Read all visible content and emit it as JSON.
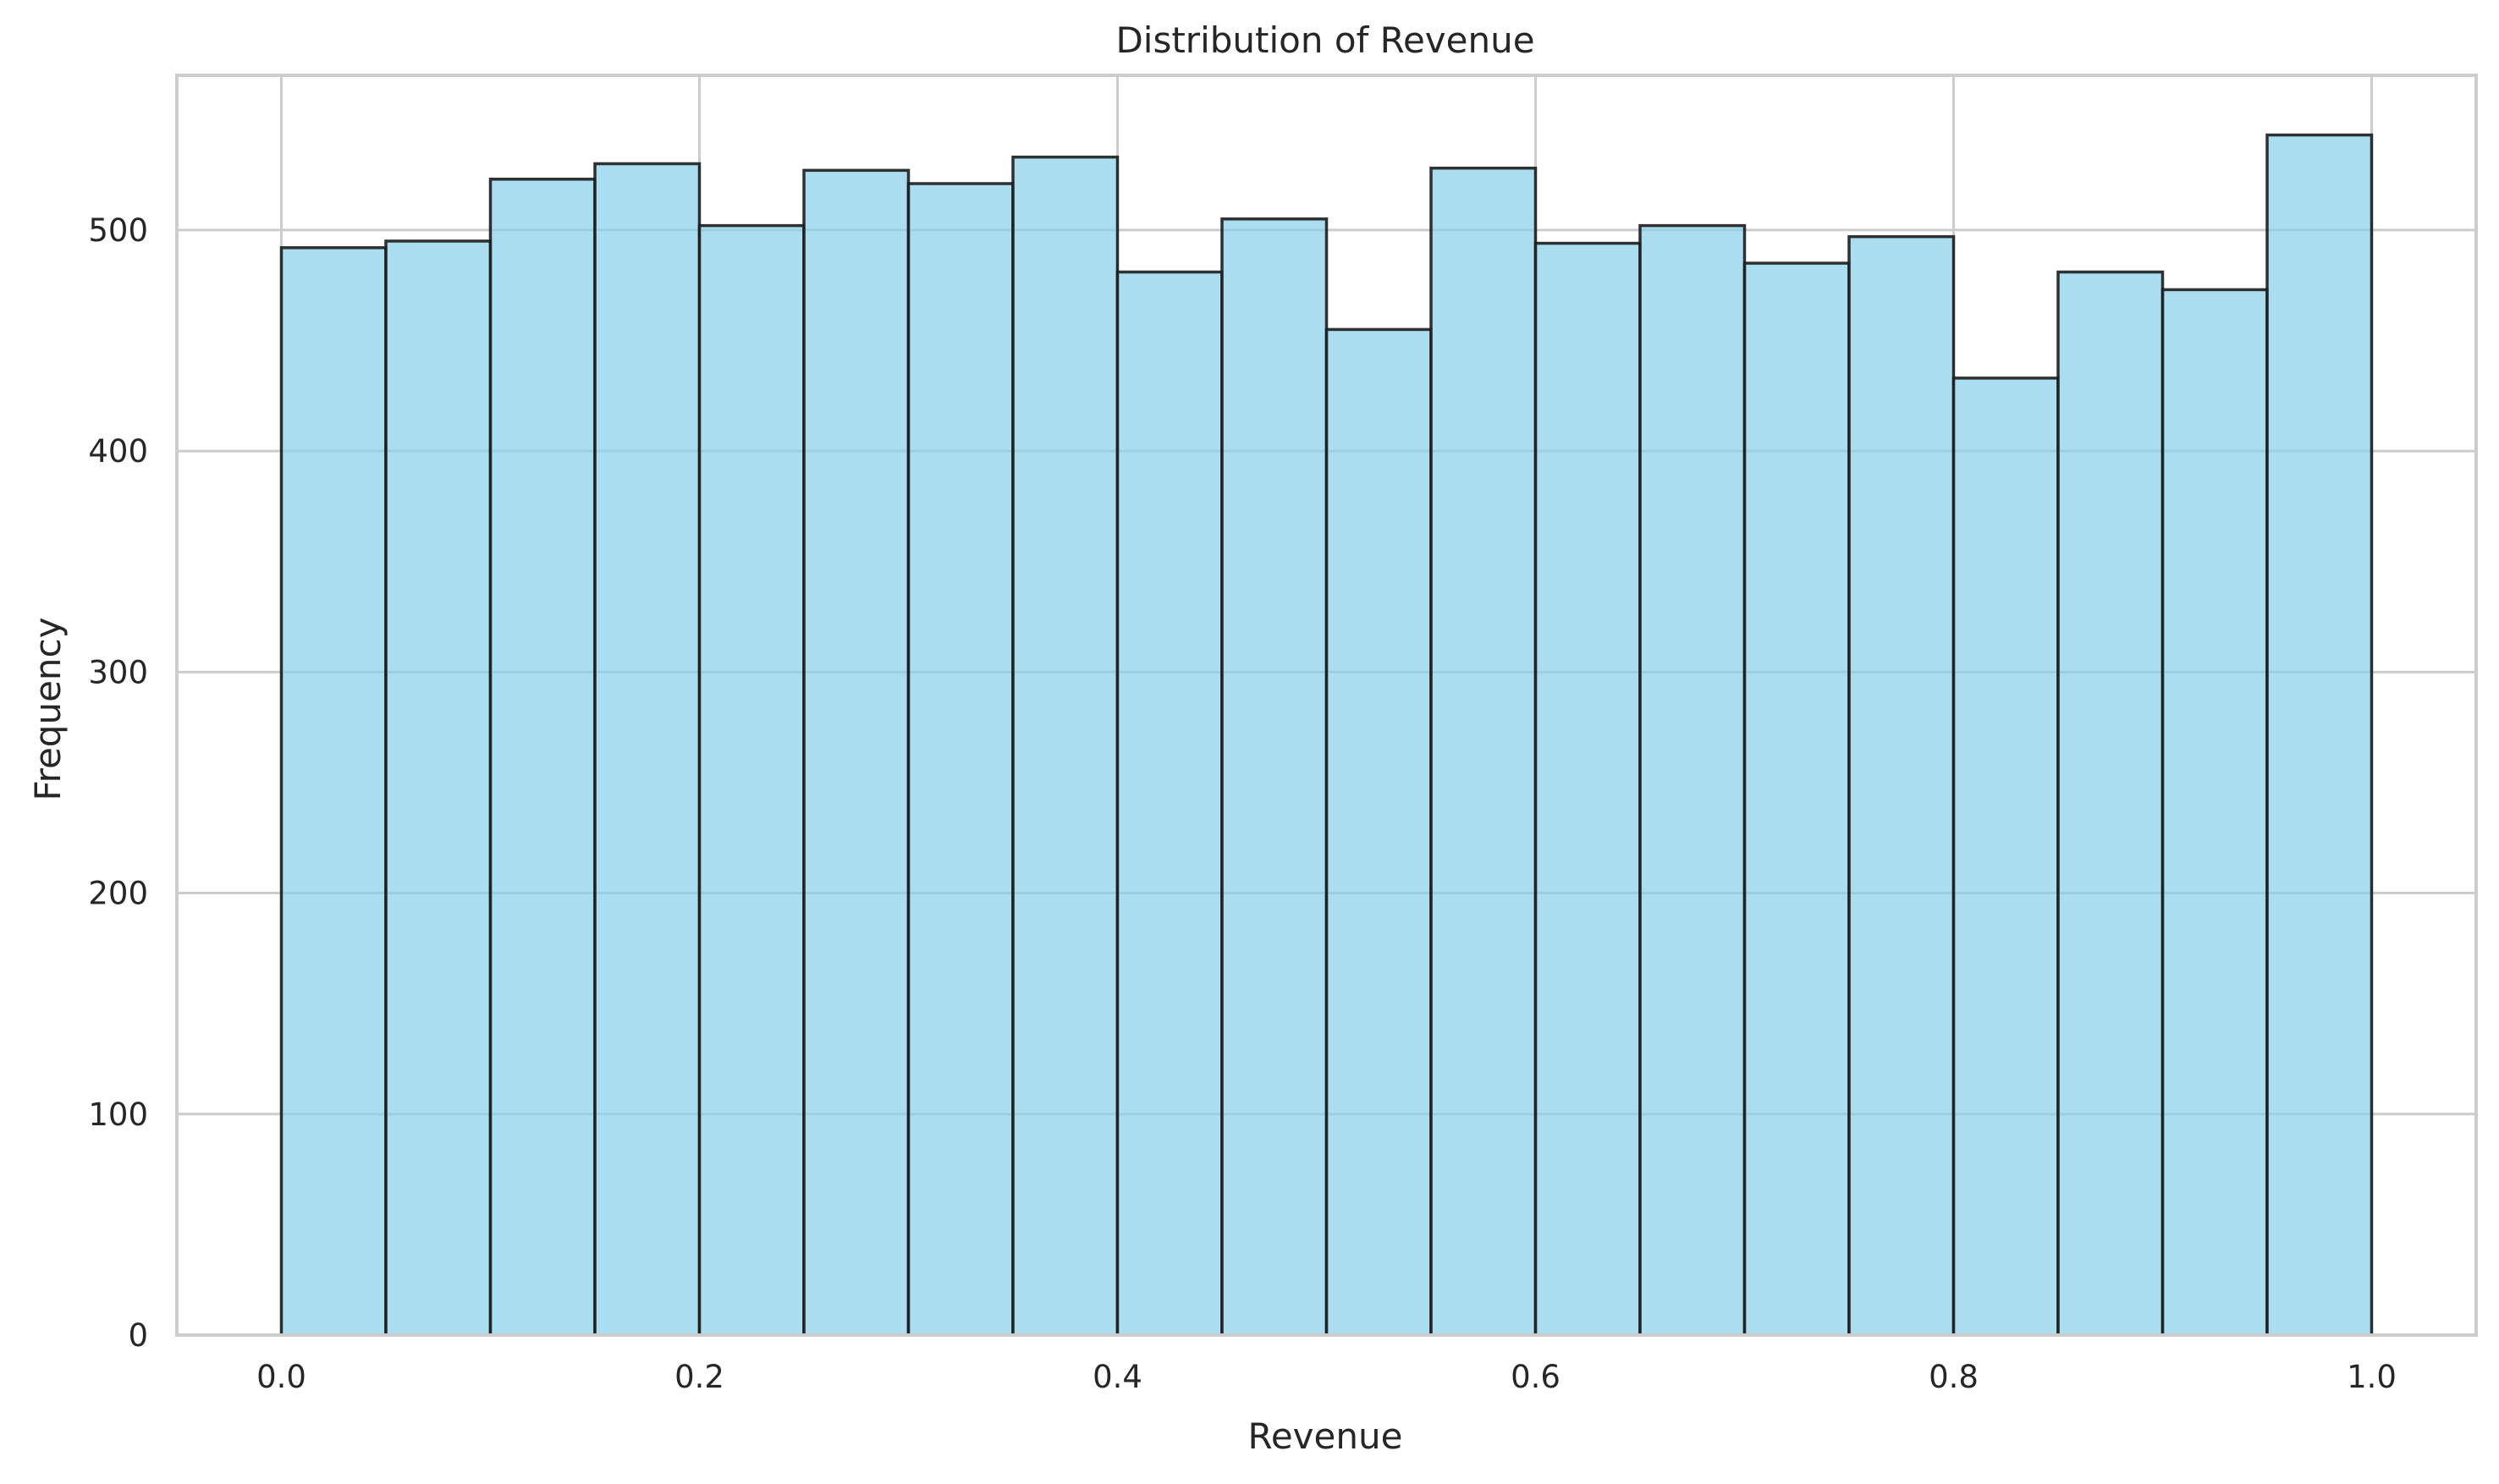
{
  "chart_data": {
    "type": "bar",
    "subtype": "histogram",
    "title": "Distribution of Revenue",
    "xlabel": "Revenue",
    "ylabel": "Frequency",
    "bin_edges": [
      0.0,
      0.05,
      0.1,
      0.15,
      0.2,
      0.25,
      0.3,
      0.35,
      0.4,
      0.45,
      0.5,
      0.55,
      0.6,
      0.65,
      0.7,
      0.75,
      0.8,
      0.85,
      0.9,
      0.95,
      1.0
    ],
    "values": [
      492,
      495,
      523,
      530,
      502,
      527,
      521,
      533,
      481,
      505,
      455,
      528,
      494,
      502,
      485,
      497,
      433,
      481,
      473,
      543
    ],
    "xlim": [
      -0.05,
      1.05
    ],
    "ylim": [
      0,
      570
    ],
    "xticks": [
      0.0,
      0.2,
      0.4,
      0.6,
      0.8,
      1.0
    ],
    "xtick_labels": [
      "0.0",
      "0.2",
      "0.4",
      "0.6",
      "0.8",
      "1.0"
    ],
    "yticks": [
      0,
      100,
      200,
      300,
      400,
      500
    ],
    "ytick_labels": [
      "0",
      "100",
      "200",
      "300",
      "400",
      "500"
    ],
    "grid": true,
    "colors": {
      "bar_fill": "#87ceeb",
      "bar_edge": "#1c1c1c",
      "grid": "#cccccc",
      "spine": "#cccccc",
      "text": "#262626"
    }
  }
}
